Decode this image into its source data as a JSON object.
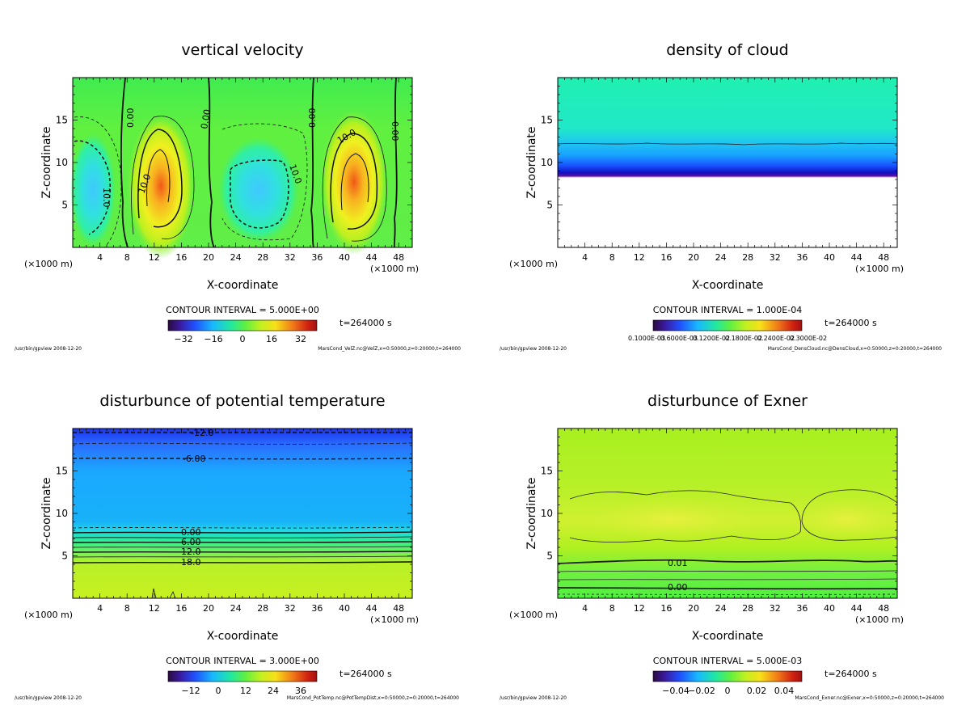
{
  "panels": [
    {
      "key": "velz",
      "title": "vertical velocity",
      "xlabel": "X-coordinate",
      "ylabel": "Z-coordinate",
      "x_unit": "(×1000 m)",
      "x_unit_right": "(×1000 m)",
      "contour_interval": "CONTOUR INTERVAL = 5.000E+00",
      "time": "t=264000 s",
      "footer_left": "/usr/bin/gpview  2008-12-20",
      "footer_right": "MarsCond_VelZ.nc@VelZ,x=0:50000,z=0:20000,t=264000",
      "colorbar_labels": [
        "−32",
        "−16",
        "0",
        "16",
        "32"
      ],
      "contour_labels": [
        "0.00",
        "0.00",
        "0.00",
        "0.00",
        "10.0",
        "10.0",
        "10.0",
        "10.0"
      ]
    },
    {
      "key": "cloud",
      "title": "density of cloud",
      "xlabel": "X-coordinate",
      "ylabel": "Z-coordinate",
      "x_unit": "(×1000 m)",
      "x_unit_right": "(×1000 m)",
      "contour_interval": "CONTOUR INTERVAL = 1.000E-04",
      "time": "t=264000 s",
      "footer_left": "/usr/bin/gpview  2008-12-20",
      "footer_right": "MarsCond_DensCloud.nc@DensCloud,x=0:50000,z=0:20000,t=264000",
      "colorbar_labels": [
        "0.1000E-03",
        "0.6000E-03",
        "0.1200E-02",
        "0.1800E-02",
        "0.2400E-02",
        "0.3000E-02"
      ],
      "contour_labels": []
    },
    {
      "key": "pt",
      "title": "disturbunce of potential temperature",
      "xlabel": "X-coordinate",
      "ylabel": "Z-coordinate",
      "x_unit": "(×1000 m)",
      "x_unit_right": "(×1000 m)",
      "contour_interval": "CONTOUR INTERVAL = 3.000E+00",
      "time": "t=264000 s",
      "footer_left": "/usr/bin/gpview  2008-12-20",
      "footer_right": "MarsCond_PotTemp.nc@PotTempDist,x=0:50000,z=0:20000,t=264000",
      "colorbar_labels": [
        "−12",
        "0",
        "12",
        "24",
        "36"
      ],
      "contour_labels": [
        "-12.0",
        "-6.00",
        "0.00",
        "6.00",
        "12.0",
        "18.0"
      ]
    },
    {
      "key": "exner",
      "title": "disturbunce of Exner",
      "xlabel": "X-coordinate",
      "ylabel": "Z-coordinate",
      "x_unit": "(×1000 m)",
      "x_unit_right": "(×1000 m)",
      "contour_interval": "CONTOUR INTERVAL = 5.000E-03",
      "time": "t=264000 s",
      "footer_left": "/usr/bin/gpview  2008-12-20",
      "footer_right": "MarsCond_Exner.nc@Exner,x=0:50000,z=0:20000,t=264000",
      "colorbar_labels": [
        "−0.04",
        "−0.02",
        "0",
        "0.02",
        "0.04"
      ],
      "contour_labels": [
        "0.01",
        "0.00"
      ]
    }
  ],
  "chart_data": [
    {
      "type": "heatmap",
      "title": "vertical velocity",
      "xlabel": "X-coordinate",
      "ylabel": "Z-coordinate",
      "xlim": [
        0,
        50
      ],
      "ylim": [
        0,
        20
      ],
      "x_ticks": [
        4,
        8,
        12,
        16,
        20,
        24,
        28,
        32,
        36,
        40,
        44,
        48
      ],
      "y_ticks": [
        5,
        10,
        15
      ],
      "contour_interval": 5.0,
      "colorbar_range": [
        -40,
        40
      ],
      "colorbar_ticks": [
        -32,
        -16,
        0,
        16,
        32
      ],
      "features": [
        {
          "kind": "updraft",
          "x": 13,
          "z": 7,
          "peak": 20
        },
        {
          "kind": "downdraft",
          "x": 27,
          "z": 7,
          "peak": -15
        },
        {
          "kind": "updraft",
          "x": 42,
          "z": 8,
          "peak": 25
        },
        {
          "kind": "downdraft",
          "x": 3,
          "z": 7,
          "peak": -12
        }
      ]
    },
    {
      "type": "heatmap",
      "title": "density of cloud",
      "xlabel": "X-coordinate",
      "ylabel": "Z-coordinate",
      "xlim": [
        0,
        50
      ],
      "ylim": [
        0,
        20
      ],
      "x_ticks": [
        4,
        8,
        12,
        16,
        20,
        24,
        28,
        32,
        36,
        40,
        44,
        48
      ],
      "y_ticks": [
        5,
        10,
        15
      ],
      "contour_interval": 0.0001,
      "cloud_base_z": 8.3,
      "cloud_top_z": 12.3,
      "colorbar_ticks": [
        0.0001,
        0.0006,
        0.0012,
        0.0018,
        0.0024,
        0.003
      ]
    },
    {
      "type": "heatmap",
      "title": "disturbunce of potential temperature",
      "xlabel": "X-coordinate",
      "ylabel": "Z-coordinate",
      "xlim": [
        0,
        50
      ],
      "ylim": [
        0,
        20
      ],
      "x_ticks": [
        4,
        8,
        12,
        16,
        20,
        24,
        28,
        32,
        36,
        40,
        44,
        48
      ],
      "y_ticks": [
        5,
        10,
        15
      ],
      "contour_interval": 3.0,
      "colorbar_range": [
        -18,
        42
      ],
      "colorbar_ticks": [
        -12,
        0,
        12,
        24,
        36
      ],
      "contours": [
        {
          "value": -12.0,
          "z": 19.5
        },
        {
          "value": -9.0,
          "z": 18.3
        },
        {
          "value": -6.0,
          "z": 16.5
        },
        {
          "value": 0.0,
          "z": 8.2
        },
        {
          "value": 6.0,
          "z": 7.0
        },
        {
          "value": 12.0,
          "z": 6.0
        },
        {
          "value": 18.0,
          "z": 4.3
        }
      ]
    },
    {
      "type": "heatmap",
      "title": "disturbunce of Exner",
      "xlabel": "X-coordinate",
      "ylabel": "Z-coordinate",
      "xlim": [
        0,
        50
      ],
      "ylim": [
        0,
        20
      ],
      "x_ticks": [
        4,
        8,
        12,
        16,
        20,
        24,
        28,
        32,
        36,
        40,
        44,
        48
      ],
      "y_ticks": [
        5,
        10,
        15
      ],
      "contour_interval": 0.005,
      "colorbar_range": [
        -0.05,
        0.05
      ],
      "colorbar_ticks": [
        -0.04,
        -0.02,
        0,
        0.02,
        0.04
      ],
      "contours": [
        {
          "value": 0.01,
          "z": 4.2
        },
        {
          "value": 0.0,
          "z": 1.3
        }
      ]
    }
  ]
}
